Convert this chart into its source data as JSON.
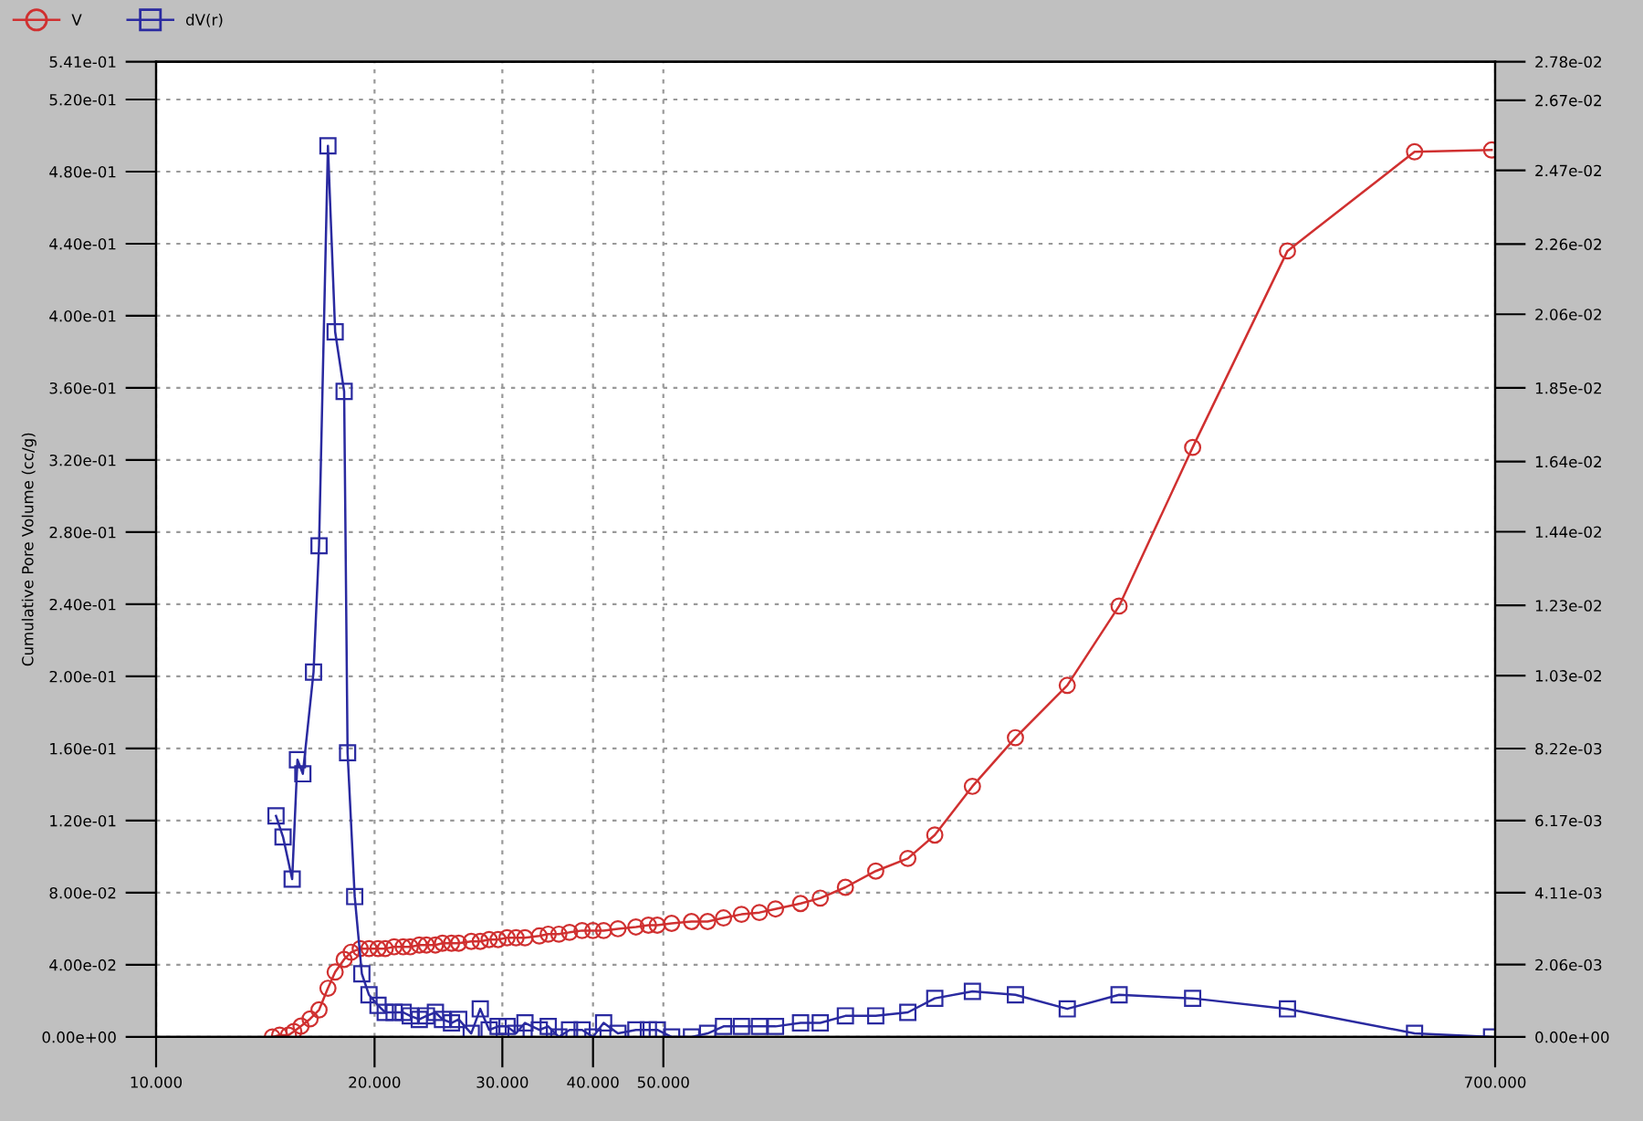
{
  "chart_data": {
    "type": "line",
    "ylabel": "Cumulative Pore Volume (cc/g)",
    "log": "x",
    "grid": true,
    "legend": "top left",
    "line_style": "solid",
    "xlim": [
      10,
      700
    ],
    "xticks": [
      {
        "value": 10,
        "label": "10.000"
      },
      {
        "value": 20,
        "label": "20.000"
      },
      {
        "value": 30,
        "label": "30.000"
      },
      {
        "value": 40,
        "label": "40.000"
      },
      {
        "value": 50,
        "label": "50.000"
      },
      {
        "value": 700,
        "label": "700.000"
      }
    ],
    "ylim": [
      0,
      0.541
    ],
    "yticks": [
      {
        "value": 0,
        "label": "0.00e+00"
      },
      {
        "value": 0.04,
        "label": "4.00e-02"
      },
      {
        "value": 0.08,
        "label": "8.00e-02"
      },
      {
        "value": 0.12,
        "label": "1.20e-01"
      },
      {
        "value": 0.16,
        "label": "1.60e-01"
      },
      {
        "value": 0.2,
        "label": "2.00e-01"
      },
      {
        "value": 0.24,
        "label": "2.40e-01"
      },
      {
        "value": 0.28,
        "label": "2.80e-01"
      },
      {
        "value": 0.32,
        "label": "3.20e-01"
      },
      {
        "value": 0.36,
        "label": "3.60e-01"
      },
      {
        "value": 0.4,
        "label": "4.00e-01"
      },
      {
        "value": 0.44,
        "label": "4.40e-01"
      },
      {
        "value": 0.48,
        "label": "4.80e-01"
      },
      {
        "value": 0.52,
        "label": "5.20e-01"
      },
      {
        "value": 0.541,
        "label": "5.41e-01"
      }
    ],
    "y2lim": [
      0,
      0.0278
    ],
    "y2ticks": [
      {
        "value": 0,
        "label": "0.00e+00"
      },
      {
        "value": 0.00206,
        "label": "2.06e-03"
      },
      {
        "value": 0.00411,
        "label": "4.11e-03"
      },
      {
        "value": 0.00617,
        "label": "6.17e-03"
      },
      {
        "value": 0.00822,
        "label": "8.22e-03"
      },
      {
        "value": 0.0103,
        "label": "1.03e-02"
      },
      {
        "value": 0.0123,
        "label": "1.23e-02"
      },
      {
        "value": 0.0144,
        "label": "1.44e-02"
      },
      {
        "value": 0.0164,
        "label": "1.64e-02"
      },
      {
        "value": 0.0185,
        "label": "1.85e-02"
      },
      {
        "value": 0.0206,
        "label": "2.06e-02"
      },
      {
        "value": 0.0226,
        "label": "2.26e-02"
      },
      {
        "value": 0.0247,
        "label": "2.47e-02"
      },
      {
        "value": 0.0267,
        "label": "2.67e-02"
      },
      {
        "value": 0.0278,
        "label": "2.78e-02"
      }
    ],
    "series": [
      {
        "name": "V",
        "color": "#d03030",
        "marker": "circle",
        "x": [
          14.46,
          14.8,
          15.22,
          15.48,
          15.84,
          16.3,
          16.77,
          17.25,
          17.65,
          18.16,
          18.57,
          19.11,
          19.65,
          20.22,
          20.69,
          21.28,
          21.9,
          22.4,
          23.05,
          23.58,
          24.26,
          24.81,
          25.53,
          26.12,
          27.18,
          27.97,
          28.77,
          29.6,
          30.45,
          31.33,
          32.23,
          33.73,
          34.7,
          35.89,
          37.13,
          38.64,
          39.99,
          41.37,
          43.29,
          45.83,
          47.68,
          49.05,
          51.33,
          54.67,
          57.54,
          60.52,
          64.06,
          67.82,
          71.37,
          77.27,
          82.26,
          89.09,
          98.09,
          108.6,
          118.3,
          133.3,
          152.8,
          180.1,
          212.3,
          268.1,
          362.2,
          542.1,
          692.2
        ],
        "values": [
          0.0,
          0.001,
          0.001,
          0.003,
          0.006,
          0.01,
          0.015,
          0.027,
          0.036,
          0.043,
          0.047,
          0.049,
          0.049,
          0.049,
          0.049,
          0.05,
          0.05,
          0.05,
          0.051,
          0.051,
          0.051,
          0.052,
          0.052,
          0.052,
          0.053,
          0.053,
          0.054,
          0.054,
          0.055,
          0.055,
          0.055,
          0.056,
          0.057,
          0.057,
          0.058,
          0.059,
          0.059,
          0.059,
          0.06,
          0.061,
          0.062,
          0.062,
          0.063,
          0.064,
          0.064,
          0.066,
          0.068,
          0.069,
          0.071,
          0.074,
          0.077,
          0.083,
          0.092,
          0.099,
          0.112,
          0.139,
          0.166,
          0.195,
          0.239,
          0.327,
          0.436,
          0.491,
          0.492
        ]
      },
      {
        "name": "dV(r)",
        "color": "#2a2aa0",
        "marker": "square",
        "axis": "y2",
        "x": [
          14.63,
          14.96,
          15.4,
          15.66,
          15.93,
          16.48,
          16.77,
          17.25,
          17.65,
          18.16,
          18.36,
          18.78,
          19.21,
          19.65,
          20.22,
          20.69,
          21.28,
          21.9,
          22.4,
          23.05,
          23.58,
          24.26,
          24.81,
          25.53,
          26.12,
          27.18,
          27.97,
          28.77,
          29.6,
          30.45,
          31.33,
          32.23,
          33.73,
          34.7,
          35.89,
          37.13,
          38.64,
          39.99,
          41.37,
          43.29,
          45.83,
          47.68,
          49.05,
          51.33,
          54.67,
          57.54,
          60.52,
          64.06,
          67.82,
          71.37,
          77.27,
          82.26,
          89.09,
          98.09,
          108.6,
          118.3,
          133.3,
          152.8,
          180.1,
          212.3,
          268.1,
          362.2,
          542.1,
          692.2
        ],
        "values": [
          0.0063,
          0.0057,
          0.0045,
          0.0079,
          0.0075,
          0.0104,
          0.014,
          0.0254,
          0.0201,
          0.0184,
          0.0081,
          0.004,
          0.0018,
          0.0012,
          0.0009,
          0.0007,
          0.0007,
          0.0007,
          0.0006,
          0.0005,
          0.0006,
          0.0007,
          0.0005,
          0.0004,
          0.0005,
          0.0001,
          0.0008,
          0.0002,
          0.0003,
          0.0003,
          0.0001,
          0.0004,
          0.0002,
          0.0003,
          0.0,
          0.0002,
          0.0002,
          0.0,
          0.0004,
          0.0001,
          0.0002,
          0.0002,
          0.0002,
          0.0,
          0.0,
          0.0001,
          0.0003,
          0.0003,
          0.0003,
          0.0003,
          0.0004,
          0.0004,
          0.0006,
          0.0006,
          0.0007,
          0.0011,
          0.0013,
          0.0012,
          0.0008,
          0.0012,
          0.0011,
          0.0008,
          0.0001,
          0.0
        ]
      }
    ]
  }
}
